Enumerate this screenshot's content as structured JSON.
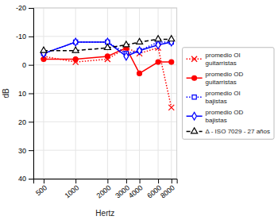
{
  "chart_data": {
    "type": "line",
    "xlabel": "Hertz",
    "ylabel": "dB",
    "x": [
      500,
      1000,
      2000,
      3000,
      4000,
      6000,
      8000
    ],
    "series": [
      {
        "name": "promedio OI\nguitarristas",
        "color": "red",
        "marker": "x",
        "line_style": "dotted",
        "values": [
          -3,
          -1,
          -2,
          -6,
          -4,
          -6,
          15
        ]
      },
      {
        "name": "promedio OD\nguitarristas",
        "color": "red",
        "marker": "circle",
        "line_style": "solid",
        "values": [
          -2,
          -2,
          -3,
          -6,
          3,
          -1,
          -1
        ]
      },
      {
        "name": "promedio OI\nbajistas",
        "color": "blue",
        "marker": "square",
        "line_style": "dotted",
        "values": [
          -4,
          -8,
          -8,
          -4,
          -5,
          -8,
          -8
        ]
      },
      {
        "name": "promedio OD\nbajistas",
        "color": "blue",
        "marker": "diamond",
        "line_style": "solid",
        "values": [
          -4,
          -8,
          -8,
          -3,
          -5,
          -7,
          -8
        ]
      },
      {
        "name": "Δ - ISO 7029 - 27 años",
        "color": "black",
        "marker": "triangle",
        "line_style": "dashed",
        "values": [
          -5,
          -5,
          -6,
          -7,
          -8,
          -9,
          -9
        ]
      }
    ],
    "xlim": [
      400,
      9000
    ],
    "xticks": [
      500,
      1000,
      2000,
      3000,
      4000,
      6000,
      8000
    ],
    "ylim": [
      40,
      -20
    ],
    "yticks": [
      -20,
      -10,
      0,
      10,
      20,
      30,
      40
    ],
    "log": "x",
    "grid": true,
    "legend": "right"
  }
}
